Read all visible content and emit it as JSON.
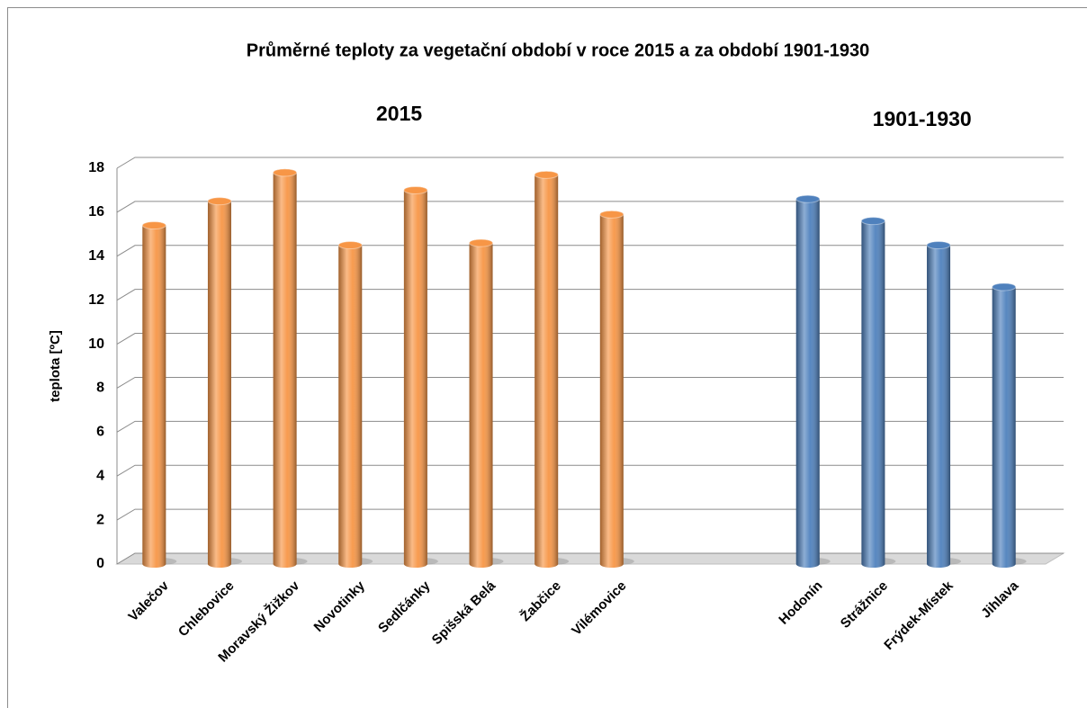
{
  "chart_data": {
    "type": "bar",
    "title": "Průměrné teploty za vegetační období v roce 2015 a za období 1901-1930",
    "y_label": "teplota [ºC]",
    "categories": [
      "Valečov",
      "Chlebovice",
      "Moravský Žižkov",
      "Novotinky",
      "Sedlčánky",
      "Spišská Belá",
      "Žabčice",
      "Vilémovice",
      null,
      null,
      "Hodonín",
      "Strážnice",
      "Frýdek-Místek",
      "Jihlava"
    ],
    "series": [
      {
        "name": "2015",
        "color": "#f79646",
        "values": [
          15.4,
          16.5,
          17.8,
          14.5,
          17.0,
          14.6,
          17.7,
          15.9,
          null,
          null,
          null,
          null,
          null,
          null
        ]
      },
      {
        "name": "1901-1930",
        "color": "#4f81bd",
        "values": [
          null,
          null,
          null,
          null,
          null,
          null,
          null,
          null,
          null,
          null,
          16.6,
          15.6,
          14.5,
          12.6
        ]
      }
    ],
    "ylim": [
      0,
      18
    ],
    "yticks": [
      0,
      2,
      4,
      6,
      8,
      10,
      12,
      14,
      16,
      18
    ],
    "grid": true
  }
}
